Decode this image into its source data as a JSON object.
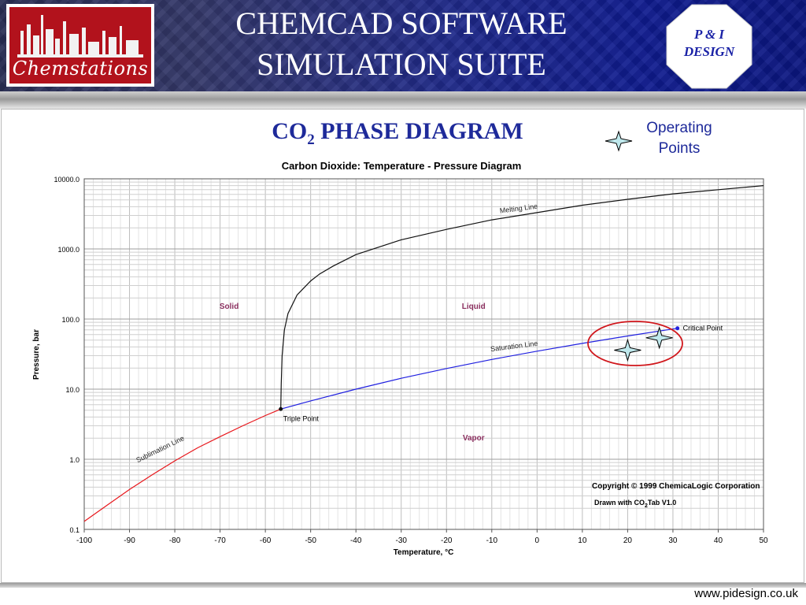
{
  "header": {
    "logo_text": "Chemstations",
    "title_line1": "CHEMCAD SOFTWARE",
    "title_line2": "SIMULATION SUITE",
    "badge_line1": "P & I",
    "badge_line2": "DESIGN",
    "colors": {
      "header_blue": "#0f1b8f",
      "logo_red": "#b2121c",
      "title_blue": "#1e2a9a"
    }
  },
  "slide": {
    "title_main": "CO",
    "title_sub": "2",
    "title_rest": " PHASE DIAGRAM",
    "legend_line1": "Operating",
    "legend_line2": "Points",
    "legend_icon": "four-point-star-icon",
    "footer_url": "www.pidesign.co.uk"
  },
  "chart_data": {
    "type": "line",
    "title": "Carbon Dioxide: Temperature - Pressure Diagram",
    "xlabel": "Temperature, °C",
    "ylabel": "Pressure, bar",
    "xlim": [
      -100,
      50
    ],
    "ylim": [
      0.1,
      10000
    ],
    "y_scale": "log",
    "grid": true,
    "x_ticks": [
      "-100",
      "-90",
      "-80",
      "-70",
      "-60",
      "-50",
      "-40",
      "-30",
      "-20",
      "-10",
      "0",
      "10",
      "20",
      "30",
      "40",
      "50"
    ],
    "y_ticks": [
      "0.1",
      "1.0",
      "10.0",
      "100.0",
      "1000.0",
      "10000.0"
    ],
    "series": [
      {
        "name": "Sublimation Line",
        "color": "#e8161b",
        "points": [
          [
            -100,
            0.13
          ],
          [
            -95,
            0.22
          ],
          [
            -90,
            0.37
          ],
          [
            -85,
            0.6
          ],
          [
            -80,
            0.95
          ],
          [
            -75,
            1.45
          ],
          [
            -70,
            2.1
          ],
          [
            -65,
            3.0
          ],
          [
            -60,
            4.2
          ],
          [
            -56.6,
            5.2
          ]
        ]
      },
      {
        "name": "Saturation Line",
        "color": "#2020e0",
        "points": [
          [
            -56.6,
            5.2
          ],
          [
            -50,
            6.8
          ],
          [
            -40,
            10.0
          ],
          [
            -30,
            14.3
          ],
          [
            -20,
            19.7
          ],
          [
            -10,
            26.5
          ],
          [
            0,
            34.8
          ],
          [
            10,
            45.0
          ],
          [
            20,
            57.3
          ],
          [
            31,
            73.8
          ]
        ]
      },
      {
        "name": "Melting Line",
        "color": "#111111",
        "points": [
          [
            -56.6,
            5.2
          ],
          [
            -56.5,
            12
          ],
          [
            -56.3,
            30
          ],
          [
            -55.8,
            70
          ],
          [
            -55,
            120
          ],
          [
            -53,
            220
          ],
          [
            -50,
            350
          ],
          [
            -48,
            440
          ],
          [
            -45,
            570
          ],
          [
            -40,
            830
          ],
          [
            -30,
            1350
          ],
          [
            -20,
            1900
          ],
          [
            -10,
            2600
          ],
          [
            0,
            3300
          ],
          [
            10,
            4200
          ],
          [
            20,
            5100
          ],
          [
            30,
            6100
          ],
          [
            40,
            7000
          ],
          [
            50,
            8000
          ]
        ]
      }
    ],
    "points": [
      {
        "label": "Triple Point",
        "x": -56.6,
        "y": 5.2
      },
      {
        "label": "Critical Point",
        "x": 31,
        "y": 73.8
      }
    ],
    "region_labels": [
      {
        "label": "Solid",
        "x": -68,
        "y": 140
      },
      {
        "label": "Liquid",
        "x": -14,
        "y": 140
      },
      {
        "label": "Vapor",
        "x": -14,
        "y": 1.85
      }
    ],
    "operating_points": [
      {
        "x": 20,
        "y": 36
      },
      {
        "x": 27,
        "y": 54
      }
    ],
    "copyright_line1": "Copyright © 1999 ChemicaLogic Corporation",
    "copyright_line2_pre": "Drawn with CO",
    "copyright_line2_sub": "2",
    "copyright_line2_post": "Tab V1.0"
  }
}
